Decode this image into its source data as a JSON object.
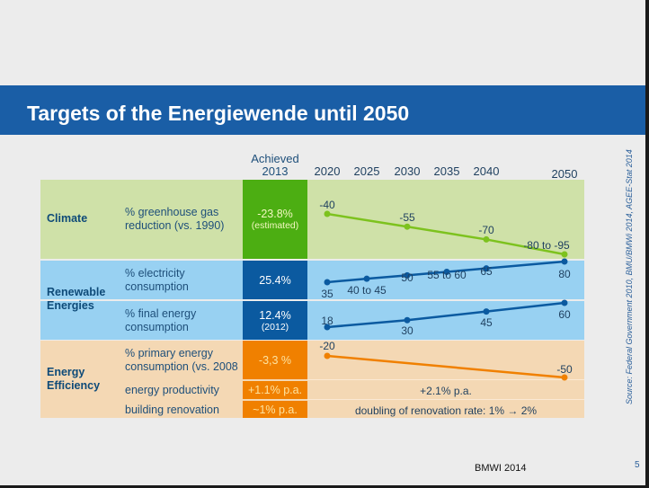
{
  "title": "Targets of the Energiewende until 2050",
  "header": {
    "achieved": "Achieved",
    "achieved_year": "2013",
    "years": [
      "2020",
      "2025",
      "2030",
      "2035",
      "2040",
      "2050"
    ]
  },
  "rows": {
    "climate": {
      "category": "Climate",
      "metric": "% greenhouse gas reduction (vs. 1990)",
      "achieved": "-23.8%",
      "achieved_note": "(estimated)"
    },
    "renewables": {
      "category": "Renewable Energies",
      "electricity": {
        "metric": "% electricity consumption",
        "achieved": "25.4%"
      },
      "final": {
        "metric": "% final energy consumption",
        "achieved": "12.4%",
        "achieved_note": "(2012)"
      }
    },
    "efficiency": {
      "category": "Energy Efficiency",
      "primary": {
        "metric": "% primary energy consumption (vs. 2008",
        "achieved": "-3,3 %"
      },
      "productivity": {
        "metric": "energy productivity",
        "achieved": "+1.1% p.a.",
        "target": "+2.1% p.a."
      },
      "renovation": {
        "metric": "building renovation",
        "achieved": "~1% p.a.",
        "target": "doubling of renovation rate: 1% → 2%"
      }
    }
  },
  "colors": {
    "green": "#7dc21e",
    "green_bg": "#cfe1a8",
    "blue": "#0b5aa0",
    "blue_bg": "#98d1f2",
    "orange": "#f08000",
    "orange_bg": "#f4d8b4",
    "band": "#1a5ea6"
  },
  "chart_data": {
    "type": "line",
    "series": [
      {
        "name": "% greenhouse gas reduction (vs. 1990)",
        "color": "#7dc21e",
        "points": [
          {
            "year": 2020,
            "value": -40,
            "label": "-40"
          },
          {
            "year": 2030,
            "value": -55,
            "label": "-55"
          },
          {
            "year": 2040,
            "value": -70,
            "label": "-70"
          },
          {
            "year": 2050,
            "value": [
              -80,
              -95
            ],
            "label": "-80 to -95"
          }
        ]
      },
      {
        "name": "% electricity consumption",
        "color": "#0b5aa0",
        "points": [
          {
            "year": 2020,
            "value": 35,
            "label": "35"
          },
          {
            "year": 2025,
            "value": [
              40,
              45
            ],
            "label": "40 to 45"
          },
          {
            "year": 2030,
            "value": 50,
            "label": "50"
          },
          {
            "year": 2035,
            "value": [
              55,
              60
            ],
            "label": "55 to 60"
          },
          {
            "year": 2040,
            "value": 65,
            "label": "65"
          },
          {
            "year": 2050,
            "value": 80,
            "label": "80"
          }
        ]
      },
      {
        "name": "% final energy consumption",
        "color": "#0b5aa0",
        "points": [
          {
            "year": 2020,
            "value": 18,
            "label": "18"
          },
          {
            "year": 2030,
            "value": 30,
            "label": "30"
          },
          {
            "year": 2040,
            "value": 45,
            "label": "45"
          },
          {
            "year": 2050,
            "value": 60,
            "label": "60"
          }
        ]
      },
      {
        "name": "% primary energy consumption (vs. 2008",
        "color": "#f08000",
        "points": [
          {
            "year": 2020,
            "value": -20,
            "label": "-20"
          },
          {
            "year": 2050,
            "value": -50,
            "label": "-50"
          }
        ]
      }
    ]
  },
  "footer": {
    "credit": "BMWI 2014",
    "page": "5",
    "source": "Source: Federal Government 2010, BMU/BMWi 2014, AGEE-Stat 2014"
  }
}
